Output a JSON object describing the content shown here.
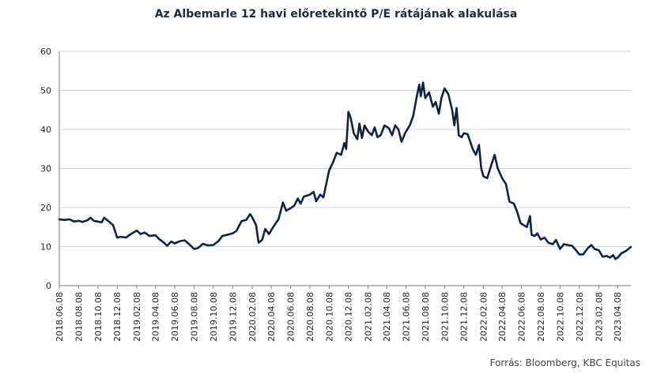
{
  "chart_data": {
    "type": "line",
    "title": "Az Albemarle 12 havi előretekintő P/E rátájának alakulása",
    "xlabel": "",
    "ylabel": "",
    "ylim": [
      0,
      60
    ],
    "yticks": [
      0,
      10,
      20,
      30,
      40,
      50,
      60
    ],
    "grid": "horizontal",
    "line_color": "#0f2244",
    "source": "Forrás: Bloomberg, KBC Equitas",
    "x_tick_labels": [
      "2018.06.08",
      "2018.08.08",
      "2018.10.08",
      "2018.12.08",
      "2019.02.08",
      "2019.04.08",
      "2019.06.08",
      "2019.08.08",
      "2019.10.08",
      "2019.12.08",
      "2020.02.08",
      "2020.04.08",
      "2020.06.08",
      "2020.08.08",
      "2020.10.08",
      "2020.12.08",
      "2021.02.08",
      "2021.04.08",
      "2021.06.08",
      "2021.08.08",
      "2021.10.08",
      "2021.12.08",
      "2022.02.08",
      "2022.04.08",
      "2022.06.08",
      "2022.08.08",
      "2022.10.08",
      "2022.12.08",
      "2023.02.08",
      "2023.04.08"
    ],
    "series": [
      {
        "points": [
          [
            "2018-06-08",
            17.0
          ],
          [
            "2018-06-25",
            16.8
          ],
          [
            "2018-07-10",
            17.0
          ],
          [
            "2018-07-25",
            16.4
          ],
          [
            "2018-08-08",
            16.6
          ],
          [
            "2018-08-20",
            16.3
          ],
          [
            "2018-09-05",
            16.7
          ],
          [
            "2018-09-15",
            17.4
          ],
          [
            "2018-09-25",
            16.6
          ],
          [
            "2018-10-08",
            16.4
          ],
          [
            "2018-10-20",
            16.2
          ],
          [
            "2018-10-28",
            17.4
          ],
          [
            "2018-11-10",
            16.5
          ],
          [
            "2018-11-25",
            15.5
          ],
          [
            "2018-12-08",
            12.3
          ],
          [
            "2018-12-20",
            12.5
          ],
          [
            "2019-01-05",
            12.3
          ],
          [
            "2019-01-20",
            13.2
          ],
          [
            "2019-02-08",
            14.1
          ],
          [
            "2019-02-20",
            13.2
          ],
          [
            "2019-03-05",
            13.6
          ],
          [
            "2019-03-20",
            12.7
          ],
          [
            "2019-04-08",
            12.9
          ],
          [
            "2019-04-20",
            11.9
          ],
          [
            "2019-05-05",
            11.0
          ],
          [
            "2019-05-15",
            10.2
          ],
          [
            "2019-05-28",
            11.3
          ],
          [
            "2019-06-08",
            10.8
          ],
          [
            "2019-06-25",
            11.4
          ],
          [
            "2019-07-10",
            11.6
          ],
          [
            "2019-07-25",
            10.5
          ],
          [
            "2019-08-08",
            9.4
          ],
          [
            "2019-08-20",
            9.6
          ],
          [
            "2019-09-05",
            10.7
          ],
          [
            "2019-09-20",
            10.3
          ],
          [
            "2019-10-08",
            10.4
          ],
          [
            "2019-10-25",
            11.5
          ],
          [
            "2019-11-05",
            12.7
          ],
          [
            "2019-11-20",
            13.0
          ],
          [
            "2019-12-08",
            13.4
          ],
          [
            "2019-12-20",
            14.0
          ],
          [
            "2020-01-05",
            16.5
          ],
          [
            "2020-01-20",
            16.8
          ],
          [
            "2020-02-01",
            18.3
          ],
          [
            "2020-02-08",
            17.5
          ],
          [
            "2020-02-20",
            15.5
          ],
          [
            "2020-02-28",
            11.0
          ],
          [
            "2020-03-10",
            11.7
          ],
          [
            "2020-03-20",
            14.5
          ],
          [
            "2020-04-01",
            13.2
          ],
          [
            "2020-04-08",
            14.2
          ],
          [
            "2020-04-20",
            15.7
          ],
          [
            "2020-05-01",
            17.0
          ],
          [
            "2020-05-15",
            21.3
          ],
          [
            "2020-05-25",
            19.2
          ],
          [
            "2020-06-08",
            19.8
          ],
          [
            "2020-06-20",
            20.5
          ],
          [
            "2020-07-01",
            22.3
          ],
          [
            "2020-07-10",
            21.0
          ],
          [
            "2020-07-20",
            22.8
          ],
          [
            "2020-08-08",
            23.3
          ],
          [
            "2020-08-20",
            24.0
          ],
          [
            "2020-08-28",
            21.6
          ],
          [
            "2020-09-10",
            23.3
          ],
          [
            "2020-09-20",
            22.6
          ],
          [
            "2020-10-08",
            29.5
          ],
          [
            "2020-10-20",
            31.5
          ],
          [
            "2020-11-01",
            34.0
          ],
          [
            "2020-11-15",
            33.5
          ],
          [
            "2020-11-25",
            36.5
          ],
          [
            "2020-12-01",
            35.0
          ],
          [
            "2020-12-08",
            44.5
          ],
          [
            "2020-12-15",
            43.0
          ],
          [
            "2020-12-25",
            39.0
          ],
          [
            "2021-01-05",
            37.5
          ],
          [
            "2021-01-12",
            41.5
          ],
          [
            "2021-01-20",
            37.8
          ],
          [
            "2021-01-28",
            41.0
          ],
          [
            "2021-02-08",
            39.5
          ],
          [
            "2021-02-20",
            38.5
          ],
          [
            "2021-03-01",
            40.5
          ],
          [
            "2021-03-10",
            38.0
          ],
          [
            "2021-03-20",
            38.5
          ],
          [
            "2021-04-01",
            41.0
          ],
          [
            "2021-04-15",
            40.3
          ],
          [
            "2021-04-25",
            38.5
          ],
          [
            "2021-05-05",
            41.0
          ],
          [
            "2021-05-15",
            40.0
          ],
          [
            "2021-05-25",
            36.8
          ],
          [
            "2021-06-05",
            39.0
          ],
          [
            "2021-06-20",
            41.0
          ],
          [
            "2021-07-01",
            43.5
          ],
          [
            "2021-07-10",
            47.5
          ],
          [
            "2021-07-20",
            51.5
          ],
          [
            "2021-07-25",
            48.5
          ],
          [
            "2021-08-01",
            52.0
          ],
          [
            "2021-08-08",
            48.0
          ],
          [
            "2021-08-20",
            49.5
          ],
          [
            "2021-09-01",
            45.8
          ],
          [
            "2021-09-10",
            47.0
          ],
          [
            "2021-09-20",
            44.0
          ],
          [
            "2021-09-28",
            48.0
          ],
          [
            "2021-10-08",
            50.5
          ],
          [
            "2021-10-20",
            49.0
          ],
          [
            "2021-11-01",
            45.0
          ],
          [
            "2021-11-08",
            41.0
          ],
          [
            "2021-11-15",
            45.5
          ],
          [
            "2021-11-22",
            38.5
          ],
          [
            "2021-12-01",
            38.0
          ],
          [
            "2021-12-08",
            39.0
          ],
          [
            "2021-12-20",
            38.8
          ],
          [
            "2022-01-05",
            35.0
          ],
          [
            "2022-01-15",
            33.5
          ],
          [
            "2022-01-25",
            36.0
          ],
          [
            "2022-02-01",
            30.0
          ],
          [
            "2022-02-08",
            28.0
          ],
          [
            "2022-02-20",
            27.5
          ],
          [
            "2022-03-05",
            31.0
          ],
          [
            "2022-03-15",
            33.5
          ],
          [
            "2022-03-25",
            30.0
          ],
          [
            "2022-04-08",
            27.5
          ],
          [
            "2022-04-20",
            26.0
          ],
          [
            "2022-05-01",
            21.5
          ],
          [
            "2022-05-15",
            21.0
          ],
          [
            "2022-05-25",
            19.0
          ],
          [
            "2022-06-05",
            16.0
          ],
          [
            "2022-06-15",
            15.5
          ],
          [
            "2022-06-25",
            15.0
          ],
          [
            "2022-07-05",
            17.8
          ],
          [
            "2022-07-10",
            13.0
          ],
          [
            "2022-07-20",
            12.7
          ],
          [
            "2022-07-28",
            13.4
          ],
          [
            "2022-08-08",
            11.8
          ],
          [
            "2022-08-20",
            12.3
          ],
          [
            "2022-09-01",
            11.0
          ],
          [
            "2022-09-15",
            10.6
          ],
          [
            "2022-09-25",
            11.7
          ],
          [
            "2022-10-08",
            9.4
          ],
          [
            "2022-10-20",
            10.6
          ],
          [
            "2022-11-01",
            10.4
          ],
          [
            "2022-11-15",
            10.2
          ],
          [
            "2022-11-25",
            9.3
          ],
          [
            "2022-12-08",
            8.0
          ],
          [
            "2022-12-20",
            8.0
          ],
          [
            "2023-01-05",
            9.7
          ],
          [
            "2023-01-15",
            10.4
          ],
          [
            "2023-01-25",
            9.4
          ],
          [
            "2023-02-08",
            9.0
          ],
          [
            "2023-02-20",
            7.4
          ],
          [
            "2023-03-05",
            7.6
          ],
          [
            "2023-03-15",
            7.2
          ],
          [
            "2023-03-25",
            7.8
          ],
          [
            "2023-04-01",
            6.8
          ],
          [
            "2023-04-10",
            7.3
          ],
          [
            "2023-04-20",
            8.3
          ],
          [
            "2023-05-05",
            8.9
          ],
          [
            "2023-05-20",
            9.9
          ]
        ]
      }
    ]
  }
}
